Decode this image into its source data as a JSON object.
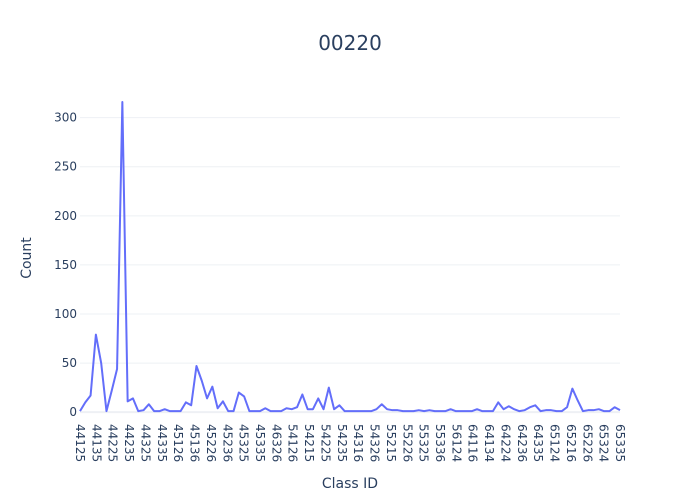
{
  "chart_data": {
    "type": "line",
    "title": "00220",
    "xlabel": "Class ID",
    "ylabel": "Count",
    "ylim": [
      -8,
      318
    ],
    "yticks": [
      0,
      50,
      100,
      150,
      200,
      250,
      300
    ],
    "xtick_labels": [
      "44125",
      "44135",
      "44225",
      "44235",
      "44325",
      "44335",
      "45126",
      "45136",
      "45226",
      "45236",
      "45325",
      "45335",
      "46326",
      "54126",
      "54215",
      "54225",
      "54235",
      "54316",
      "54326",
      "55215",
      "55226",
      "55325",
      "55336",
      "56124",
      "64116",
      "64134",
      "64224",
      "64236",
      "64335",
      "65124",
      "65216",
      "65226",
      "65324",
      "65335"
    ],
    "series": [
      {
        "color": "#636efa",
        "values": [
          1,
          10,
          17,
          79,
          50,
          1,
          22,
          44,
          316,
          11,
          14,
          1,
          2,
          8,
          1,
          1,
          3,
          1,
          1,
          1,
          10,
          7,
          47,
          32,
          14,
          26,
          4,
          11,
          1,
          1,
          20,
          16,
          1,
          1,
          1,
          4,
          1,
          1,
          1,
          4,
          3,
          5,
          18,
          3,
          3,
          14,
          3,
          25,
          3,
          7,
          1,
          1,
          1,
          1,
          1,
          1,
          3,
          8,
          3,
          2,
          2,
          1,
          1,
          1,
          2,
          1,
          2,
          1,
          1,
          1,
          3,
          1,
          1,
          1,
          1,
          3,
          1,
          1,
          1,
          10,
          3,
          6,
          3,
          1,
          2,
          5,
          7,
          1,
          2,
          2,
          1,
          1,
          5,
          24,
          12,
          1,
          2,
          2,
          3,
          1,
          1,
          5,
          2
        ]
      }
    ]
  }
}
